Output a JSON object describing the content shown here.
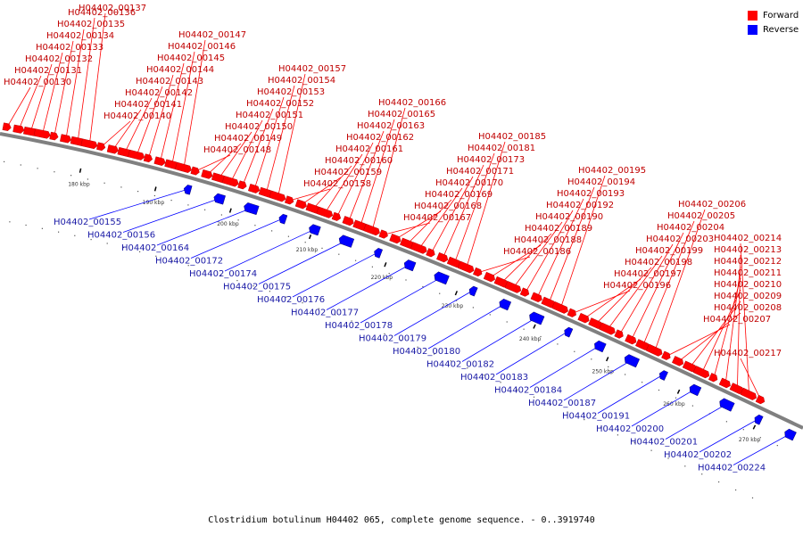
{
  "caption": "Clostridium botulinum H04402 065, complete genome sequence. - 0..3919740",
  "legend": {
    "forward": "Forward",
    "reverse": "Reverse"
  },
  "colors": {
    "forward": "#ff0000",
    "reverse": "#0000ff",
    "backbone": "#808080"
  },
  "ticks": [
    "180 kbp",
    "190 kbp",
    "200 kbp",
    "210 kbp",
    "220 kbp",
    "230 kbp",
    "240 kbp",
    "250 kbp",
    "260 kbp",
    "270 kbp"
  ],
  "forward_genes": [
    "H04402_00130",
    "H04402_00131",
    "H04402_00132",
    "H04402_00133",
    "H04402_00134",
    "H04402_00135",
    "H04402_00136",
    "H04402_00137",
    "H04402_00140",
    "H04402_00141",
    "H04402_00142",
    "H04402_00143",
    "H04402_00144",
    "H04402_00145",
    "H04402_00146",
    "H04402_00147",
    "H04402_00148",
    "H04402_00149",
    "H04402_00150",
    "H04402_00151",
    "H04402_00152",
    "H04402_00153",
    "H04402_00154",
    "H04402_00157",
    "H04402_00158",
    "H04402_00159",
    "H04402_00160",
    "H04402_00161",
    "H04402_00162",
    "H04402_00163",
    "H04402_00165",
    "H04402_00166",
    "H04402_00167",
    "H04402_00168",
    "H04402_00169",
    "H04402_00170",
    "H04402_00171",
    "H04402_00173",
    "H04402_00181",
    "H04402_00185",
    "H04402_00186",
    "H04402_00188",
    "H04402_00189",
    "H04402_00190",
    "H04402_00192",
    "H04402_00193",
    "H04402_00194",
    "H04402_00195",
    "H04402_00196",
    "H04402_00197",
    "H04402_00198",
    "H04402_00199",
    "H04402_00203",
    "H04402_00204",
    "H04402_00205",
    "H04402_00206",
    "H04402_00207",
    "H04402_00208",
    "H04402_00209",
    "H04402_00210",
    "H04402_00211",
    "H04402_00212",
    "H04402_00213",
    "H04402_00214",
    "H04402_00217"
  ],
  "reverse_genes": [
    "H04402_00155",
    "H04402_00156",
    "H04402_00164",
    "H04402_00172",
    "H04402_00174",
    "H04402_00175",
    "H04402_00176",
    "H04402_00177",
    "H04402_00178",
    "H04402_00179",
    "H04402_00180",
    "H04402_00182",
    "H04402_00183",
    "H04402_00184",
    "H04402_00187",
    "H04402_00191",
    "H04402_00200",
    "H04402_00201",
    "H04402_00202",
    "H04402_00224"
  ]
}
